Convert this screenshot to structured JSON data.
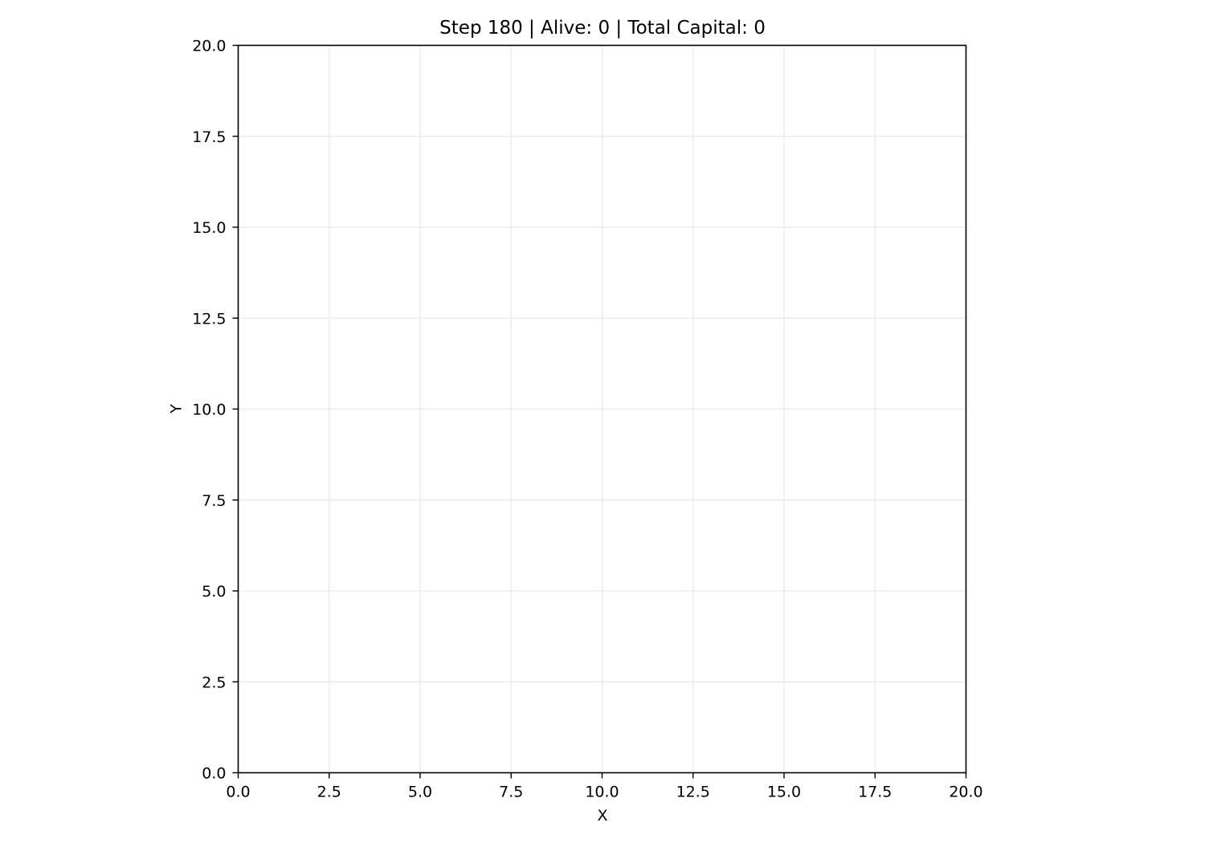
{
  "chart_data": {
    "type": "scatter",
    "title": "Step 180 | Alive: 0 | Total Capital: 0",
    "xlabel": "X",
    "ylabel": "Y",
    "xlim": [
      0,
      20
    ],
    "ylim": [
      0,
      20
    ],
    "xticks": [
      0.0,
      2.5,
      5.0,
      7.5,
      10.0,
      12.5,
      15.0,
      17.5,
      20.0
    ],
    "yticks": [
      0.0,
      2.5,
      5.0,
      7.5,
      10.0,
      12.5,
      15.0,
      17.5,
      20.0
    ],
    "xtick_labels": [
      "0.0",
      "2.5",
      "5.0",
      "7.5",
      "10.0",
      "12.5",
      "15.0",
      "17.5",
      "20.0"
    ],
    "ytick_labels": [
      "0.0",
      "2.5",
      "5.0",
      "7.5",
      "10.0",
      "12.5",
      "15.0",
      "17.5",
      "20.0"
    ],
    "grid": true,
    "series": [
      {
        "x": [],
        "y": []
      }
    ],
    "colors": {
      "grid": "#ebebeb",
      "axes": "#000000",
      "background": "#ffffff"
    }
  }
}
